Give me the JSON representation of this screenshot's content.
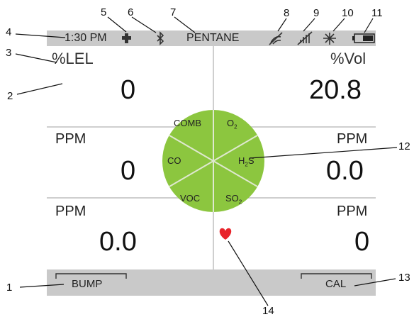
{
  "status": {
    "time": "1:30 PM",
    "gas": "PENTANE"
  },
  "readings": {
    "comb": {
      "unit": "%LEL",
      "value": "0"
    },
    "o2": {
      "unit": "%Vol",
      "value": "20.8"
    },
    "co": {
      "unit": "PPM",
      "value": "0"
    },
    "h2s": {
      "unit": "PPM",
      "value": "0.0"
    },
    "voc": {
      "unit": "PPM",
      "value": "0.0"
    },
    "so2": {
      "unit": "PPM",
      "value": "0"
    }
  },
  "wheel": {
    "comb": "COMB",
    "o2": "O",
    "o2_sub": "2",
    "co": "CO",
    "h2s_main": "H",
    "h2s_sub": "2",
    "h2s_tail": "S",
    "voc": "VOC",
    "so2": "SO",
    "so2_sub": "2"
  },
  "softkeys": {
    "left": "BUMP",
    "right": "CAL"
  },
  "callouts": [
    "1",
    "2",
    "3",
    "4",
    "5",
    "6",
    "7",
    "8",
    "9",
    "10",
    "11",
    "12",
    "13",
    "14"
  ],
  "colors": {
    "bar": "#c9c9c9",
    "wheel": "#8cc63f",
    "heart": "#e8232a"
  },
  "icons": [
    "cross-icon",
    "bluetooth-icon",
    "wireless-off-icon",
    "signal-off-icon",
    "gps-off-icon",
    "battery-icon",
    "heart-icon"
  ]
}
